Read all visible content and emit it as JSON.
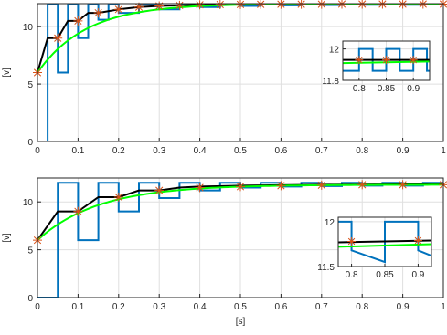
{
  "colors": {
    "pwm": "#0072BD",
    "average": "#000000",
    "reference": "#00FF00",
    "samples": "#D95319",
    "grid": "#dfdfdf",
    "axis": "#262626"
  },
  "chart_data": [
    {
      "id": "top",
      "type": "line",
      "xlim": [
        0,
        1
      ],
      "ylim": [
        0,
        12
      ],
      "xticks": [
        "0",
        "0.1",
        "0.2",
        "0.3",
        "0.4",
        "0.5",
        "0.6",
        "0.7",
        "0.8",
        "0.9",
        "1"
      ],
      "yticks": [
        "0",
        "5",
        "10"
      ],
      "xlabel": "",
      "ylabel": "[v]",
      "grid": true,
      "series": [
        {
          "kind": "pwm",
          "x": [
            0,
            0.025,
            0.025,
            0.05,
            0.05,
            0.075,
            0.075,
            0.1,
            0.1,
            0.125,
            0.125,
            0.15,
            0.15,
            0.175,
            0.175,
            0.2,
            0.2,
            0.25,
            0.25,
            0.3,
            0.3,
            0.35,
            0.35,
            0.4,
            0.4,
            0.45,
            0.45,
            0.5,
            0.5,
            0.55,
            0.55,
            0.6,
            0.6,
            0.65,
            0.65,
            0.7,
            0.7,
            0.75,
            0.75,
            0.8,
            0.8,
            0.85,
            0.85,
            0.9,
            0.9,
            0.95,
            0.95,
            1.0
          ],
          "y": [
            0,
            0,
            12,
            12,
            6,
            6,
            12,
            12,
            9,
            9,
            12,
            12,
            10.6,
            10.6,
            12,
            12,
            11.2,
            11.2,
            12,
            12,
            11.5,
            11.5,
            12,
            12,
            11.7,
            11.7,
            12,
            12,
            11.8,
            11.8,
            12,
            12,
            11.85,
            11.85,
            12,
            12,
            11.88,
            11.88,
            12,
            12,
            11.9,
            11.9,
            12,
            12,
            11.9,
            11.9,
            12,
            12
          ]
        },
        {
          "kind": "average",
          "x": [
            0,
            0.025,
            0.025,
            0.05,
            0.05,
            0.075,
            0.075,
            0.1,
            0.1,
            0.125,
            0.125,
            0.15,
            0.15,
            0.2,
            0.2,
            0.25,
            0.25,
            0.3,
            0.3,
            0.4,
            0.4,
            0.5,
            0.5,
            1.0
          ],
          "y": [
            6,
            9,
            9,
            9,
            9,
            10.5,
            10.5,
            10.5,
            10.5,
            11.2,
            11.2,
            11.2,
            11.2,
            11.5,
            11.5,
            11.7,
            11.7,
            11.8,
            11.8,
            11.9,
            11.9,
            11.95,
            11.95,
            11.95
          ]
        },
        {
          "kind": "reference",
          "tau": 0.12,
          "start": 6,
          "final": 12
        },
        {
          "kind": "samples",
          "x": [
            0,
            0.05,
            0.1,
            0.15,
            0.2,
            0.25,
            0.3,
            0.35,
            0.4,
            0.45,
            0.5,
            0.55,
            0.6,
            0.65,
            0.7,
            0.75,
            0.8,
            0.85,
            0.9,
            0.95,
            1.0
          ],
          "y": [
            6,
            9,
            10.5,
            11.2,
            11.5,
            11.7,
            11.8,
            11.85,
            11.9,
            11.92,
            11.93,
            11.94,
            11.95,
            11.95,
            11.95,
            11.96,
            11.96,
            11.96,
            11.96,
            11.96,
            11.96
          ]
        }
      ],
      "inset": {
        "xlim": [
          0.77,
          0.93
        ],
        "ylim": [
          11.8,
          12.05
        ],
        "xticks": [
          "0.8",
          "0.85",
          "0.9"
        ],
        "yticks": [
          "11.8",
          "12"
        ],
        "series": [
          {
            "kind": "pwm",
            "x": [
              0.77,
              0.8,
              0.8,
              0.825,
              0.825,
              0.85,
              0.85,
              0.875,
              0.875,
              0.9,
              0.9,
              0.925,
              0.925,
              0.93
            ],
            "y": [
              11.86,
              11.86,
              12,
              12,
              11.86,
              11.86,
              12,
              12,
              11.86,
              11.86,
              12,
              12,
              11.86,
              11.86
            ]
          },
          {
            "kind": "average",
            "x": [
              0.77,
              0.93
            ],
            "y": [
              11.93,
              11.93
            ]
          },
          {
            "kind": "reference",
            "x": [
              0.77,
              0.93
            ],
            "y": [
              11.91,
              11.92
            ]
          },
          {
            "kind": "samples",
            "x": [
              0.8,
              0.85,
              0.9
            ],
            "y": [
              11.93,
              11.93,
              11.93
            ]
          }
        ]
      }
    },
    {
      "id": "bottom",
      "type": "line",
      "xlim": [
        0,
        1
      ],
      "ylim": [
        0,
        12.5
      ],
      "xticks": [
        "0",
        "0.1",
        "0.2",
        "0.3",
        "0.4",
        "0.5",
        "0.6",
        "0.7",
        "0.8",
        "0.9",
        "1"
      ],
      "yticks": [
        "0",
        "5",
        "10"
      ],
      "xlabel": "[s]",
      "ylabel": "[v]",
      "grid": true,
      "series": [
        {
          "kind": "pwm",
          "x": [
            0,
            0.05,
            0.05,
            0.1,
            0.1,
            0.15,
            0.15,
            0.2,
            0.2,
            0.25,
            0.25,
            0.3,
            0.3,
            0.35,
            0.35,
            0.4,
            0.4,
            0.45,
            0.45,
            0.5,
            0.5,
            0.55,
            0.55,
            0.6,
            0.6,
            0.65,
            0.65,
            0.7,
            0.7,
            0.75,
            0.75,
            0.8,
            0.8,
            0.85,
            0.85,
            0.9,
            0.9,
            0.95,
            0.95,
            1.0
          ],
          "y": [
            0,
            0,
            12,
            12,
            6,
            6,
            12,
            12,
            9,
            9,
            12,
            12,
            10.4,
            10.4,
            12,
            12,
            11.2,
            11.2,
            12,
            12,
            11.5,
            11.5,
            12,
            12,
            11.6,
            11.6,
            12,
            12,
            11.65,
            11.65,
            12,
            12,
            11.7,
            11.7,
            12,
            12,
            11.7,
            11.7,
            12,
            12
          ]
        },
        {
          "kind": "average",
          "x": [
            0,
            0.05,
            0.05,
            0.1,
            0.1,
            0.15,
            0.15,
            0.2,
            0.2,
            0.25,
            0.25,
            0.3,
            0.3,
            0.35,
            0.35,
            0.4,
            0.4,
            0.5,
            0.5,
            0.7,
            0.7,
            1.0
          ],
          "y": [
            6,
            9,
            9,
            9,
            9,
            10.5,
            10.5,
            10.5,
            10.5,
            11.2,
            11.2,
            11.2,
            11.2,
            11.5,
            11.5,
            11.6,
            11.6,
            11.7,
            11.7,
            11.8,
            11.8,
            11.85
          ]
        },
        {
          "kind": "reference",
          "tau": 0.15,
          "start": 6,
          "final": 11.8
        },
        {
          "kind": "samples",
          "x": [
            0,
            0.1,
            0.2,
            0.3,
            0.4,
            0.5,
            0.6,
            0.7,
            0.8,
            0.9,
            1.0
          ],
          "y": [
            6,
            9,
            10.5,
            11.2,
            11.5,
            11.6,
            11.7,
            11.75,
            11.8,
            11.8,
            11.8
          ]
        }
      ],
      "inset": {
        "xlim": [
          0.78,
          0.92
        ],
        "ylim": [
          11.5,
          12.05
        ],
        "xticks": [
          "0.8",
          "0.85",
          "0.9"
        ],
        "yticks": [
          "11.5",
          "12"
        ],
        "series": [
          {
            "kind": "pwm",
            "x": [
              0.78,
              0.8,
              0.8,
              0.85,
              0.85,
              0.9,
              0.9,
              0.92
            ],
            "y": [
              12,
              12,
              11.68,
              11.55,
              12,
              12,
              11.68,
              11.62
            ]
          },
          {
            "kind": "average",
            "x": [
              0.78,
              0.92
            ],
            "y": [
              11.77,
              11.79
            ]
          },
          {
            "kind": "reference",
            "x": [
              0.78,
              0.92
            ],
            "y": [
              11.72,
              11.75
            ]
          },
          {
            "kind": "samples",
            "x": [
              0.8,
              0.9
            ],
            "y": [
              11.78,
              11.79
            ]
          }
        ]
      }
    }
  ]
}
